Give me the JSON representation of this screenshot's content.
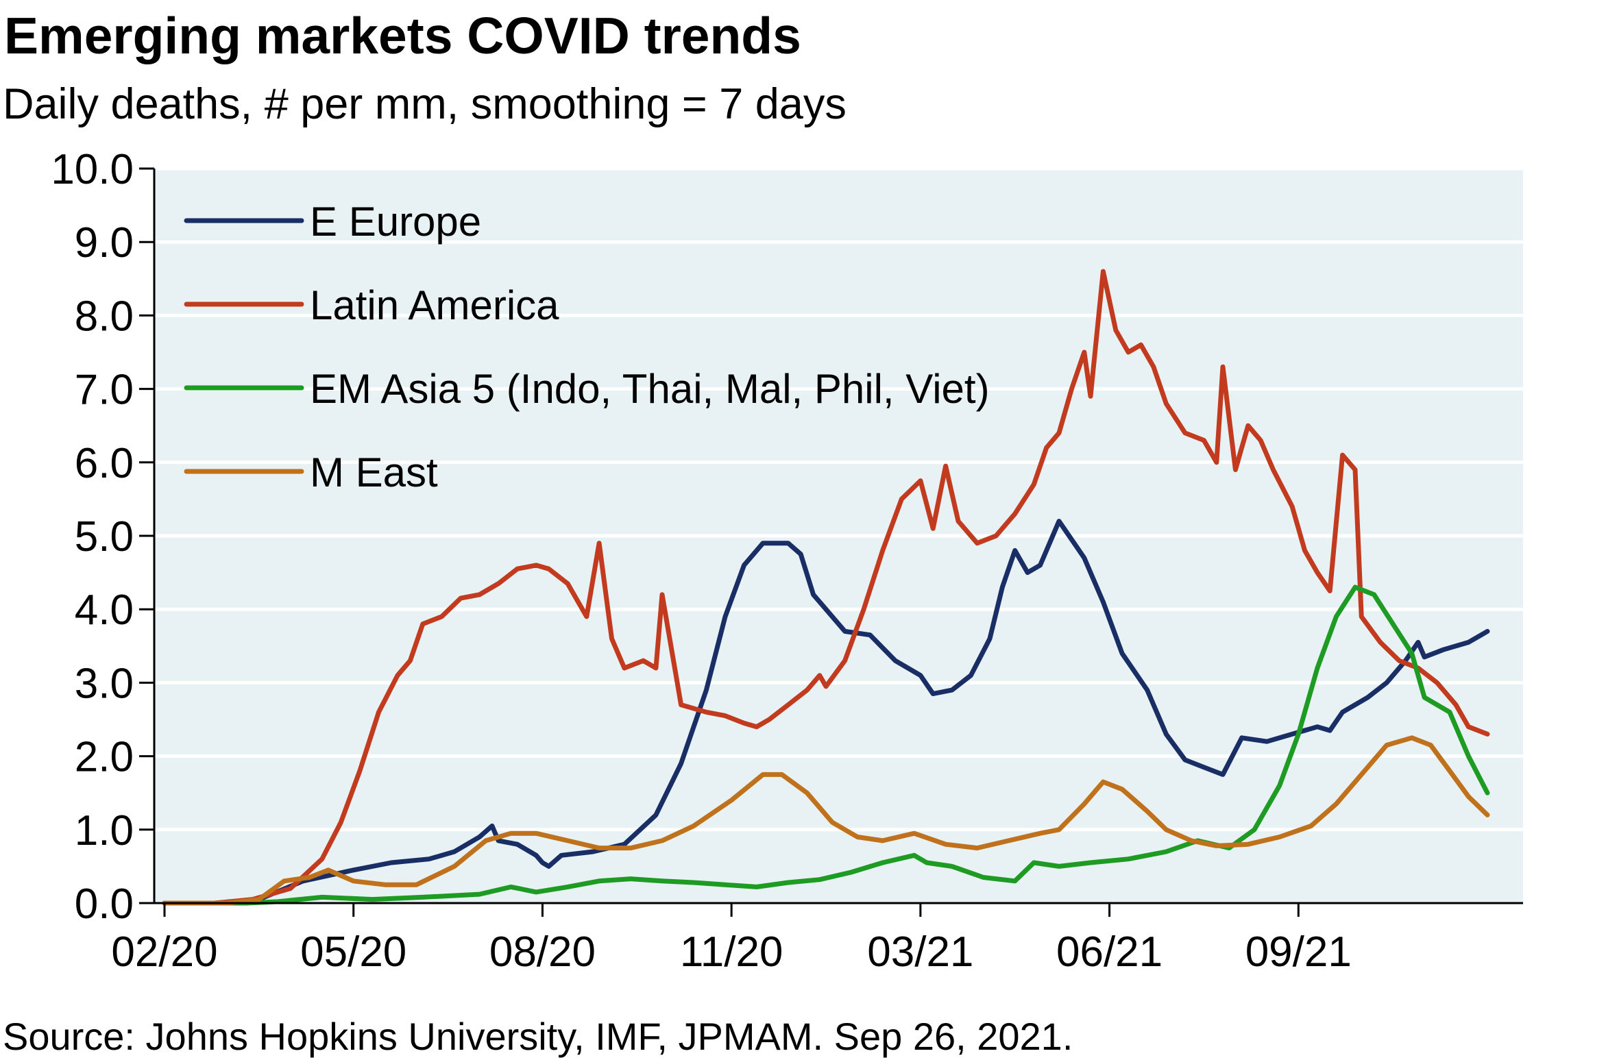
{
  "title": "Emerging markets COVID trends",
  "subtitle": "Daily deaths, # per mm, smoothing = 7 days",
  "source": "Source: Johns Hopkins University, IMF, JPMAM. Sep 26, 2021.",
  "chart_data": {
    "type": "line",
    "title": "Emerging markets COVID trends",
    "subtitle": "Daily deaths, # per mm, smoothing = 7 days",
    "xlabel": "",
    "ylabel": "",
    "x_ticks": [
      "02/20",
      "05/20",
      "08/20",
      "11/20",
      "03/21",
      "06/21",
      "09/21"
    ],
    "x_tick_index": [
      0,
      3,
      6,
      9,
      12,
      15,
      18
    ],
    "ylim": [
      0,
      10
    ],
    "y_ticks": [
      "0.0",
      "1.0",
      "2.0",
      "3.0",
      "4.0",
      "5.0",
      "6.0",
      "7.0",
      "8.0",
      "9.0",
      "10.0"
    ],
    "grid": "horizontal",
    "legend_position": "top-left",
    "plot_background": "#e8f1f3",
    "series": [
      {
        "name": "E Europe",
        "color": "#1a2e66",
        "points": [
          [
            0,
            0
          ],
          [
            0.8,
            0
          ],
          [
            1.5,
            0.05
          ],
          [
            2.2,
            0.3
          ],
          [
            3.0,
            0.45
          ],
          [
            3.6,
            0.55
          ],
          [
            4.2,
            0.6
          ],
          [
            4.6,
            0.7
          ],
          [
            5.0,
            0.9
          ],
          [
            5.2,
            1.05
          ],
          [
            5.3,
            0.85
          ],
          [
            5.6,
            0.8
          ],
          [
            5.9,
            0.65
          ],
          [
            6.0,
            0.55
          ],
          [
            6.1,
            0.5
          ],
          [
            6.3,
            0.65
          ],
          [
            6.8,
            0.7
          ],
          [
            7.3,
            0.8
          ],
          [
            7.8,
            1.2
          ],
          [
            8.2,
            1.9
          ],
          [
            8.6,
            2.9
          ],
          [
            8.9,
            3.9
          ],
          [
            9.2,
            4.6
          ],
          [
            9.5,
            4.9
          ],
          [
            9.9,
            4.9
          ],
          [
            10.1,
            4.75
          ],
          [
            10.3,
            4.2
          ],
          [
            10.5,
            4.0
          ],
          [
            10.8,
            3.7
          ],
          [
            11.2,
            3.65
          ],
          [
            11.6,
            3.3
          ],
          [
            12.0,
            3.1
          ],
          [
            12.2,
            2.85
          ],
          [
            12.5,
            2.9
          ],
          [
            12.8,
            3.1
          ],
          [
            13.1,
            3.6
          ],
          [
            13.3,
            4.3
          ],
          [
            13.5,
            4.8
          ],
          [
            13.7,
            4.5
          ],
          [
            13.9,
            4.6
          ],
          [
            14.2,
            5.2
          ],
          [
            14.4,
            4.95
          ],
          [
            14.6,
            4.7
          ],
          [
            14.9,
            4.1
          ],
          [
            15.2,
            3.4
          ],
          [
            15.6,
            2.9
          ],
          [
            15.9,
            2.3
          ],
          [
            16.2,
            1.95
          ],
          [
            16.5,
            1.85
          ],
          [
            16.8,
            1.75
          ],
          [
            17.1,
            2.25
          ],
          [
            17.5,
            2.2
          ],
          [
            17.9,
            2.3
          ],
          [
            18.3,
            2.4
          ],
          [
            18.5,
            2.35
          ],
          [
            18.7,
            2.6
          ],
          [
            19.1,
            2.8
          ],
          [
            19.4,
            3.0
          ],
          [
            19.7,
            3.3
          ],
          [
            19.9,
            3.55
          ],
          [
            20.0,
            3.35
          ],
          [
            20.3,
            3.45
          ],
          [
            20.7,
            3.55
          ],
          [
            21.0,
            3.7
          ]
        ]
      },
      {
        "name": "Latin America",
        "color": "#c23b1e",
        "points": [
          [
            0,
            0
          ],
          [
            0.8,
            0
          ],
          [
            1.4,
            0.05
          ],
          [
            2.0,
            0.2
          ],
          [
            2.5,
            0.6
          ],
          [
            2.8,
            1.1
          ],
          [
            3.1,
            1.8
          ],
          [
            3.4,
            2.6
          ],
          [
            3.7,
            3.1
          ],
          [
            3.9,
            3.3
          ],
          [
            4.1,
            3.8
          ],
          [
            4.4,
            3.9
          ],
          [
            4.7,
            4.15
          ],
          [
            5.0,
            4.2
          ],
          [
            5.3,
            4.35
          ],
          [
            5.6,
            4.55
          ],
          [
            5.9,
            4.6
          ],
          [
            6.1,
            4.55
          ],
          [
            6.4,
            4.35
          ],
          [
            6.7,
            3.9
          ],
          [
            6.9,
            4.9
          ],
          [
            7.1,
            3.6
          ],
          [
            7.3,
            3.2
          ],
          [
            7.6,
            3.3
          ],
          [
            7.8,
            3.2
          ],
          [
            7.9,
            4.2
          ],
          [
            8.1,
            3.2
          ],
          [
            8.2,
            2.7
          ],
          [
            8.6,
            2.6
          ],
          [
            8.9,
            2.55
          ],
          [
            9.2,
            2.45
          ],
          [
            9.4,
            2.4
          ],
          [
            9.6,
            2.5
          ],
          [
            9.9,
            2.7
          ],
          [
            10.2,
            2.9
          ],
          [
            10.4,
            3.1
          ],
          [
            10.5,
            2.95
          ],
          [
            10.8,
            3.3
          ],
          [
            11.1,
            4.0
          ],
          [
            11.4,
            4.8
          ],
          [
            11.7,
            5.5
          ],
          [
            12.0,
            5.75
          ],
          [
            12.2,
            5.1
          ],
          [
            12.4,
            5.95
          ],
          [
            12.6,
            5.2
          ],
          [
            12.9,
            4.9
          ],
          [
            13.2,
            5.0
          ],
          [
            13.5,
            5.3
          ],
          [
            13.8,
            5.7
          ],
          [
            14.0,
            6.2
          ],
          [
            14.2,
            6.4
          ],
          [
            14.4,
            7.0
          ],
          [
            14.6,
            7.5
          ],
          [
            14.7,
            6.9
          ],
          [
            14.9,
            8.6
          ],
          [
            15.1,
            7.8
          ],
          [
            15.3,
            7.5
          ],
          [
            15.5,
            7.6
          ],
          [
            15.7,
            7.3
          ],
          [
            15.9,
            6.8
          ],
          [
            16.2,
            6.4
          ],
          [
            16.5,
            6.3
          ],
          [
            16.7,
            6.0
          ],
          [
            16.8,
            7.3
          ],
          [
            17.0,
            5.9
          ],
          [
            17.2,
            6.5
          ],
          [
            17.4,
            6.3
          ],
          [
            17.6,
            5.9
          ],
          [
            17.9,
            5.4
          ],
          [
            18.1,
            4.8
          ],
          [
            18.3,
            4.5
          ],
          [
            18.5,
            4.25
          ],
          [
            18.7,
            6.1
          ],
          [
            18.9,
            5.9
          ],
          [
            19.0,
            3.9
          ],
          [
            19.3,
            3.55
          ],
          [
            19.6,
            3.3
          ],
          [
            19.9,
            3.2
          ],
          [
            20.2,
            3.0
          ],
          [
            20.5,
            2.7
          ],
          [
            20.7,
            2.4
          ],
          [
            21.0,
            2.3
          ]
        ]
      },
      {
        "name": "EM Asia 5 (Indo, Thai, Mal, Phil, Viet)",
        "color": "#1e9b22",
        "points": [
          [
            0,
            0
          ],
          [
            1.3,
            0
          ],
          [
            1.8,
            0.02
          ],
          [
            2.5,
            0.08
          ],
          [
            3.3,
            0.05
          ],
          [
            4.1,
            0.08
          ],
          [
            5.0,
            0.12
          ],
          [
            5.5,
            0.22
          ],
          [
            5.9,
            0.15
          ],
          [
            6.4,
            0.22
          ],
          [
            6.9,
            0.3
          ],
          [
            7.4,
            0.33
          ],
          [
            7.9,
            0.3
          ],
          [
            8.4,
            0.28
          ],
          [
            8.9,
            0.25
          ],
          [
            9.4,
            0.22
          ],
          [
            9.9,
            0.28
          ],
          [
            10.4,
            0.32
          ],
          [
            10.9,
            0.42
          ],
          [
            11.4,
            0.55
          ],
          [
            11.9,
            0.65
          ],
          [
            12.1,
            0.55
          ],
          [
            12.5,
            0.5
          ],
          [
            13.0,
            0.35
          ],
          [
            13.5,
            0.3
          ],
          [
            13.8,
            0.55
          ],
          [
            14.2,
            0.5
          ],
          [
            14.7,
            0.55
          ],
          [
            15.3,
            0.6
          ],
          [
            15.9,
            0.7
          ],
          [
            16.4,
            0.85
          ],
          [
            16.9,
            0.75
          ],
          [
            17.3,
            1.0
          ],
          [
            17.7,
            1.6
          ],
          [
            18.0,
            2.3
          ],
          [
            18.3,
            3.2
          ],
          [
            18.6,
            3.9
          ],
          [
            18.9,
            4.3
          ],
          [
            19.2,
            4.2
          ],
          [
            19.5,
            3.8
          ],
          [
            19.8,
            3.4
          ],
          [
            20.0,
            2.8
          ],
          [
            20.4,
            2.6
          ],
          [
            20.7,
            2.0
          ],
          [
            21.0,
            1.5
          ]
        ]
      },
      {
        "name": "M East",
        "color": "#c0711c",
        "points": [
          [
            0,
            0
          ],
          [
            1.0,
            0
          ],
          [
            1.5,
            0.05
          ],
          [
            1.9,
            0.3
          ],
          [
            2.3,
            0.35
          ],
          [
            2.6,
            0.45
          ],
          [
            3.0,
            0.3
          ],
          [
            3.5,
            0.25
          ],
          [
            4.0,
            0.25
          ],
          [
            4.6,
            0.5
          ],
          [
            5.1,
            0.85
          ],
          [
            5.5,
            0.95
          ],
          [
            5.9,
            0.95
          ],
          [
            6.4,
            0.85
          ],
          [
            6.9,
            0.75
          ],
          [
            7.4,
            0.75
          ],
          [
            7.9,
            0.85
          ],
          [
            8.4,
            1.05
          ],
          [
            9.0,
            1.4
          ],
          [
            9.5,
            1.75
          ],
          [
            9.8,
            1.75
          ],
          [
            10.2,
            1.5
          ],
          [
            10.6,
            1.1
          ],
          [
            11.0,
            0.9
          ],
          [
            11.4,
            0.85
          ],
          [
            11.9,
            0.95
          ],
          [
            12.4,
            0.8
          ],
          [
            12.9,
            0.75
          ],
          [
            13.4,
            0.85
          ],
          [
            13.9,
            0.95
          ],
          [
            14.2,
            1.0
          ],
          [
            14.6,
            1.35
          ],
          [
            14.9,
            1.65
          ],
          [
            15.2,
            1.55
          ],
          [
            15.6,
            1.25
          ],
          [
            15.9,
            1.0
          ],
          [
            16.3,
            0.85
          ],
          [
            16.7,
            0.78
          ],
          [
            17.2,
            0.8
          ],
          [
            17.7,
            0.9
          ],
          [
            18.2,
            1.05
          ],
          [
            18.6,
            1.35
          ],
          [
            19.0,
            1.75
          ],
          [
            19.4,
            2.15
          ],
          [
            19.8,
            2.25
          ],
          [
            20.1,
            2.15
          ],
          [
            20.4,
            1.8
          ],
          [
            20.7,
            1.45
          ],
          [
            21.0,
            1.2
          ]
        ]
      }
    ]
  }
}
